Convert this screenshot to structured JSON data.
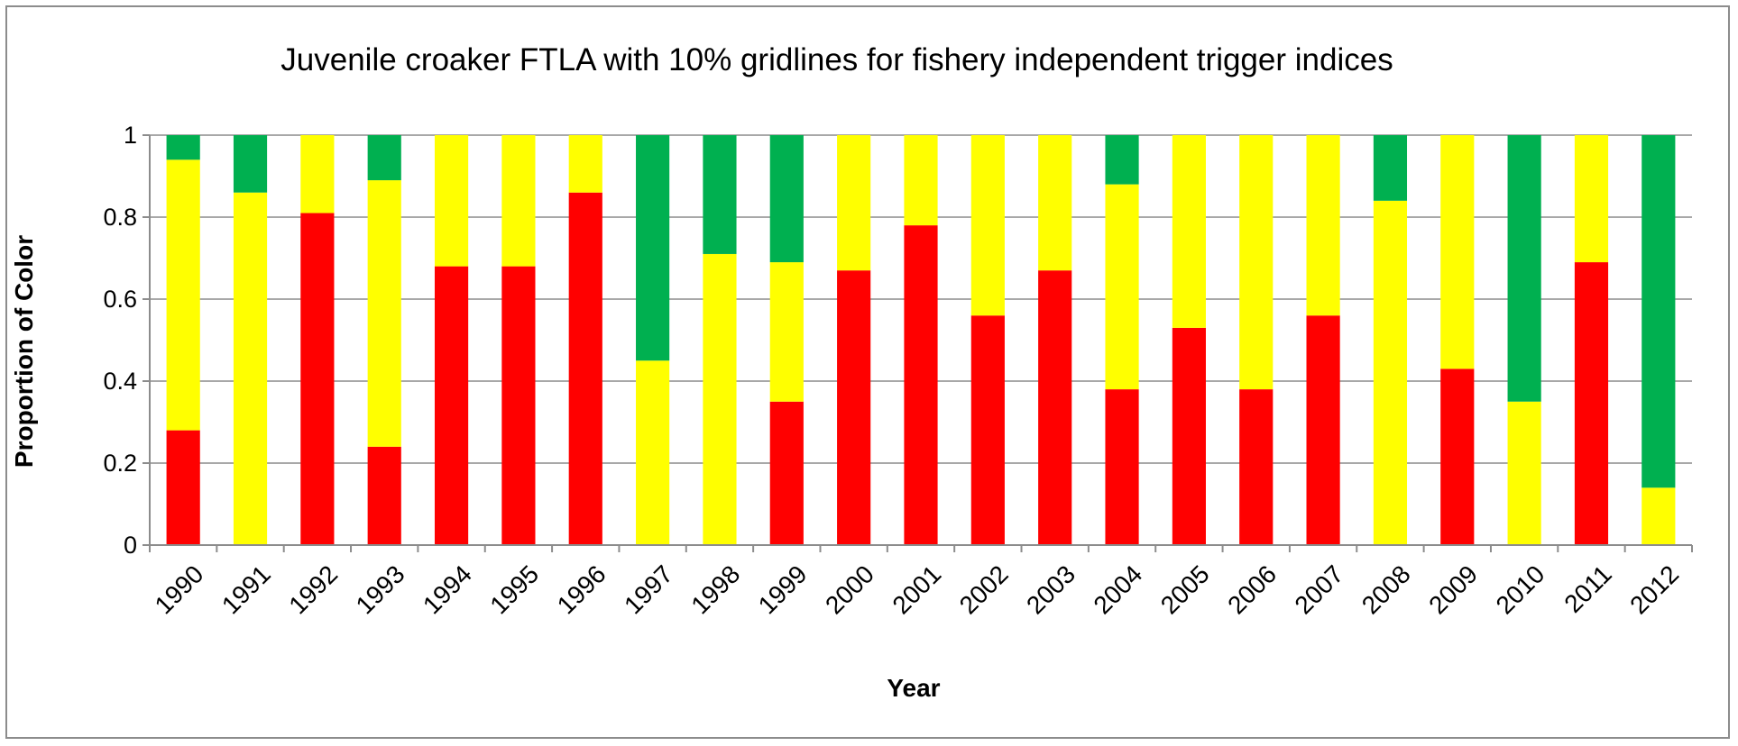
{
  "chart_data": {
    "type": "bar",
    "stacked": true,
    "title": "Juvenile croaker FTLA  with 10% gridlines for fishery independent trigger indices",
    "xlabel": "Year",
    "ylabel": "Proportion of Color",
    "ylim": [
      0,
      1
    ],
    "yticks": [
      "0",
      "0.2",
      "0.4",
      "0.6",
      "0.8",
      "1"
    ],
    "grid": true,
    "legend": "none",
    "categories": [
      "1990",
      "1991",
      "1992",
      "1993",
      "1994",
      "1995",
      "1996",
      "1997",
      "1998",
      "1999",
      "2000",
      "2001",
      "2002",
      "2003",
      "2004",
      "2005",
      "2006",
      "2007",
      "2008",
      "2009",
      "2010",
      "2011",
      "2012"
    ],
    "series": [
      {
        "color": "#ff0000",
        "values": [
          0.28,
          0.0,
          0.81,
          0.24,
          0.68,
          0.68,
          0.86,
          0.0,
          0.0,
          0.35,
          0.67,
          0.78,
          0.56,
          0.67,
          0.38,
          0.53,
          0.38,
          0.56,
          0.0,
          0.43,
          0.0,
          0.69,
          0.0
        ]
      },
      {
        "color": "#ffff00",
        "values": [
          0.66,
          0.86,
          0.19,
          0.65,
          0.32,
          0.32,
          0.14,
          0.45,
          0.71,
          0.34,
          0.33,
          0.22,
          0.44,
          0.33,
          0.5,
          0.47,
          0.62,
          0.44,
          0.84,
          0.57,
          0.35,
          0.31,
          0.14
        ]
      },
      {
        "color": "#00b050",
        "values": [
          0.06,
          0.14,
          0.0,
          0.11,
          0.0,
          0.0,
          0.0,
          0.55,
          0.29,
          0.31,
          0.0,
          0.0,
          0.0,
          0.0,
          0.12,
          0.0,
          0.0,
          0.0,
          0.16,
          0.0,
          0.65,
          0.0,
          0.86
        ]
      }
    ]
  }
}
